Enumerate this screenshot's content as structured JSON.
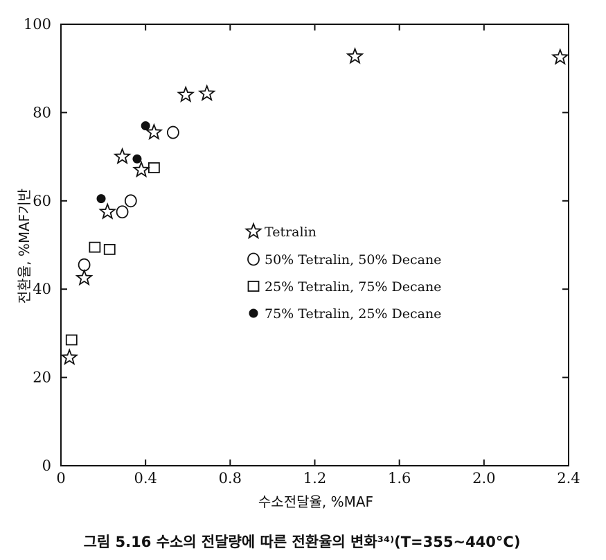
{
  "chart_data": {
    "type": "scatter",
    "title": "",
    "caption": "그림 5.16  수소의 전달량에 따른 전환율의 변화³⁴⁾(T=355~440°C)",
    "xlabel": "수소전달율,  %MAF",
    "ylabel": "전환율,  %MAF기반",
    "xlim": [
      0,
      2.4
    ],
    "ylim": [
      0,
      100
    ],
    "x_ticks": [
      "0",
      "0.4",
      "0.8",
      "1.2",
      "1.6",
      "2.0",
      "2.4"
    ],
    "x_tick_values": [
      0,
      0.4,
      0.8,
      1.2,
      1.6,
      2.0,
      2.4
    ],
    "y_ticks": [
      "0",
      "20",
      "40",
      "60",
      "80",
      "100"
    ],
    "y_tick_values": [
      0,
      20,
      40,
      60,
      80,
      100
    ],
    "grid": false,
    "legend_position": "center-right",
    "series": [
      {
        "name": "Tetralin",
        "marker": "star",
        "x": [
          0.04,
          0.11,
          0.22,
          0.29,
          0.38,
          0.44,
          0.59,
          0.69,
          1.39,
          2.36
        ],
        "y": [
          24.5,
          42.5,
          57.5,
          70,
          67,
          75.5,
          84,
          84.3,
          92.7,
          92.5
        ]
      },
      {
        "name": "50%  Tetralin, 50% Decane",
        "marker": "circle",
        "x": [
          0.11,
          0.29,
          0.33,
          0.53
        ],
        "y": [
          45.5,
          57.5,
          60,
          75.5
        ]
      },
      {
        "name": "25%  Tetralin, 75% Decane",
        "marker": "square",
        "x": [
          0.05,
          0.16,
          0.23,
          0.44
        ],
        "y": [
          28.5,
          49.5,
          49,
          67.5
        ]
      },
      {
        "name": "75%  Tetralin, 25%  Decane",
        "marker": "filled-circle",
        "x": [
          0.19,
          0.36,
          0.4
        ],
        "y": [
          60.5,
          69.5,
          77
        ]
      }
    ]
  }
}
